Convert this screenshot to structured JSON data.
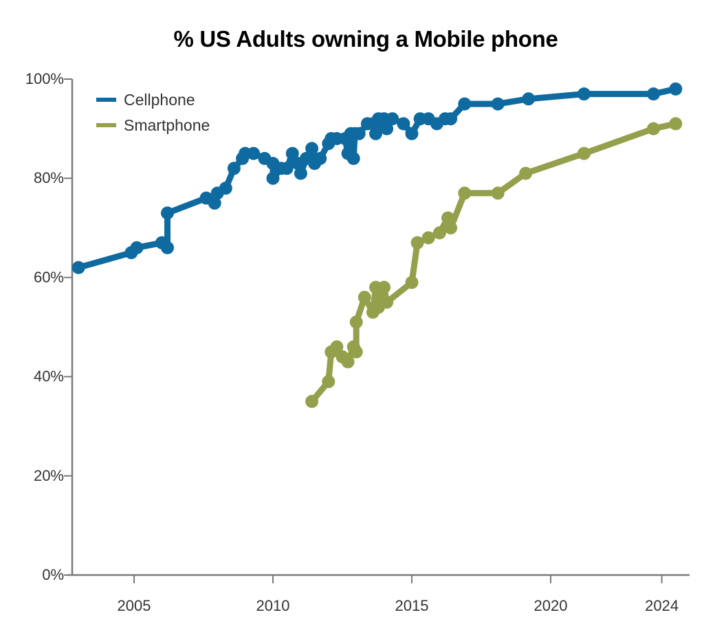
{
  "chart_data": {
    "type": "line",
    "title": "% US Adults owning a Mobile phone",
    "xlabel": "",
    "ylabel": "",
    "xlim": [
      2002.75,
      2024.6
    ],
    "ylim": [
      0,
      100
    ],
    "x_ticks": [
      2005,
      2010,
      2015,
      2020,
      2024
    ],
    "x_tick_labels": [
      "2005",
      "2010",
      "2015",
      "2020",
      "2024"
    ],
    "y_ticks": [
      0,
      20,
      40,
      60,
      80,
      100
    ],
    "y_tick_labels": [
      "0%",
      "20%",
      "40%",
      "60%",
      "80%",
      "100%"
    ],
    "grid": false,
    "legend_position": "top-left",
    "series": [
      {
        "name": "Cellphone",
        "color": "#0f6aa0",
        "points": [
          [
            2003.0,
            62
          ],
          [
            2004.9,
            65
          ],
          [
            2005.1,
            66
          ],
          [
            2006.0,
            67
          ],
          [
            2006.2,
            66
          ],
          [
            2006.2,
            73
          ],
          [
            2007.6,
            76
          ],
          [
            2007.9,
            75
          ],
          [
            2008.0,
            77
          ],
          [
            2008.3,
            78
          ],
          [
            2008.6,
            82
          ],
          [
            2008.9,
            84
          ],
          [
            2009.0,
            85
          ],
          [
            2009.3,
            85
          ],
          [
            2009.7,
            84
          ],
          [
            2010.0,
            83
          ],
          [
            2010.0,
            80
          ],
          [
            2010.3,
            82
          ],
          [
            2010.5,
            82
          ],
          [
            2010.7,
            85
          ],
          [
            2010.9,
            83
          ],
          [
            2011.0,
            81
          ],
          [
            2011.2,
            84
          ],
          [
            2011.4,
            86
          ],
          [
            2011.5,
            83
          ],
          [
            2011.7,
            84
          ],
          [
            2012.0,
            87
          ],
          [
            2012.1,
            88
          ],
          [
            2012.3,
            88
          ],
          [
            2012.6,
            88
          ],
          [
            2012.7,
            85
          ],
          [
            2012.8,
            89
          ],
          [
            2012.9,
            84
          ],
          [
            2012.95,
            89
          ],
          [
            2013.1,
            89
          ],
          [
            2013.4,
            91
          ],
          [
            2013.6,
            91
          ],
          [
            2013.7,
            89
          ],
          [
            2013.8,
            92
          ],
          [
            2013.9,
            91
          ],
          [
            2014.0,
            92
          ],
          [
            2014.1,
            90
          ],
          [
            2014.3,
            92
          ],
          [
            2014.7,
            91
          ],
          [
            2015.0,
            89
          ],
          [
            2015.3,
            92
          ],
          [
            2015.6,
            92
          ],
          [
            2015.9,
            91
          ],
          [
            2016.2,
            92
          ],
          [
            2016.4,
            92
          ],
          [
            2016.9,
            95
          ],
          [
            2018.1,
            95
          ],
          [
            2019.2,
            96
          ],
          [
            2021.2,
            97
          ],
          [
            2023.7,
            97
          ],
          [
            2024.5,
            98
          ]
        ]
      },
      {
        "name": "Smartphone",
        "color": "#95a04c",
        "points": [
          [
            2011.4,
            35
          ],
          [
            2012.0,
            39
          ],
          [
            2012.1,
            45
          ],
          [
            2012.3,
            46
          ],
          [
            2012.5,
            44
          ],
          [
            2012.7,
            43
          ],
          [
            2012.9,
            46
          ],
          [
            2013.0,
            45
          ],
          [
            2013.0,
            51
          ],
          [
            2013.3,
            56
          ],
          [
            2013.6,
            53
          ],
          [
            2013.7,
            58
          ],
          [
            2013.8,
            54
          ],
          [
            2014.0,
            58
          ],
          [
            2014.1,
            55
          ],
          [
            2015.0,
            59
          ],
          [
            2015.2,
            67
          ],
          [
            2015.6,
            68
          ],
          [
            2016.0,
            69
          ],
          [
            2016.3,
            72
          ],
          [
            2016.4,
            70
          ],
          [
            2016.9,
            77
          ],
          [
            2018.1,
            77
          ],
          [
            2019.1,
            81
          ],
          [
            2021.2,
            85
          ],
          [
            2023.7,
            90
          ],
          [
            2024.5,
            91
          ]
        ]
      }
    ]
  }
}
